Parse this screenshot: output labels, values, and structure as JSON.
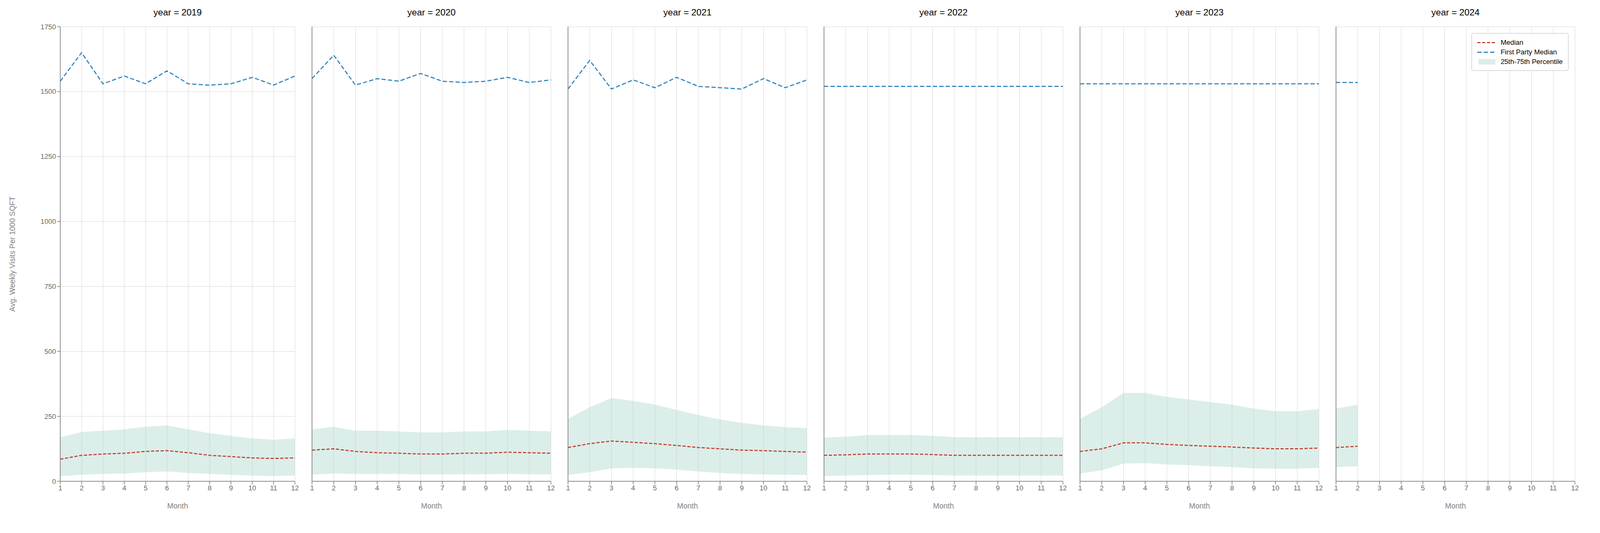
{
  "chart_data": [
    {
      "type": "line",
      "title": "year = 2019",
      "xlabel": "Month",
      "ylabel": "Avg. Weekly Visits Per 1000 SQFT",
      "x": [
        1,
        2,
        3,
        4,
        5,
        6,
        7,
        8,
        9,
        10,
        11,
        12
      ],
      "xlim": [
        1,
        12
      ],
      "xticks": [
        1,
        2,
        3,
        4,
        5,
        6,
        7,
        8,
        9,
        10,
        11,
        12
      ],
      "ylim": [
        0,
        1750
      ],
      "yticks": [
        0,
        250,
        500,
        750,
        1000,
        1250,
        1500,
        1750
      ],
      "grid": true,
      "series": [
        {
          "name": "Median",
          "type": "line",
          "color": "#c0392b",
          "line_style": "dashed",
          "values": [
            85,
            100,
            105,
            108,
            115,
            118,
            110,
            100,
            95,
            90,
            88,
            90
          ]
        },
        {
          "name": "First Party Median",
          "type": "line",
          "color": "#2980b9",
          "line_style": "dashed",
          "values": [
            1540,
            1650,
            1530,
            1560,
            1530,
            1580,
            1530,
            1525,
            1530,
            1555,
            1525,
            1560
          ]
        },
        {
          "name": "25th-75th Percentile",
          "type": "area",
          "color": "#a8d5c8",
          "lower": [
            20,
            25,
            28,
            30,
            35,
            38,
            32,
            28,
            25,
            22,
            20,
            22
          ],
          "upper": [
            170,
            190,
            195,
            200,
            210,
            215,
            200,
            185,
            175,
            165,
            160,
            165
          ]
        }
      ]
    },
    {
      "type": "line",
      "title": "year = 2020",
      "xlabel": "Month",
      "tick_labels": "x",
      "x": [
        1,
        2,
        3,
        4,
        5,
        6,
        7,
        8,
        9,
        10,
        11,
        12
      ],
      "xlim": [
        1,
        12
      ],
      "xticks": [
        1,
        2,
        3,
        4,
        5,
        6,
        7,
        8,
        9,
        10,
        11,
        12
      ],
      "ylim": [
        0,
        1750
      ],
      "yticks": [
        0,
        250,
        500,
        750,
        1000,
        1250,
        1500,
        1750
      ],
      "grid": true,
      "series": [
        {
          "name": "Median",
          "type": "line",
          "color": "#c0392b",
          "line_style": "dashed",
          "values": [
            120,
            125,
            115,
            110,
            108,
            105,
            105,
            108,
            108,
            112,
            110,
            108
          ]
        },
        {
          "name": "First Party Median",
          "type": "line",
          "color": "#2980b9",
          "line_style": "dashed",
          "values": [
            1550,
            1640,
            1525,
            1550,
            1540,
            1570,
            1540,
            1535,
            1540,
            1555,
            1535,
            1545
          ]
        },
        {
          "name": "25th-75th Percentile",
          "type": "area",
          "color": "#a8d5c8",
          "lower": [
            25,
            30,
            28,
            28,
            28,
            26,
            26,
            27,
            27,
            28,
            27,
            26
          ],
          "upper": [
            200,
            210,
            195,
            195,
            192,
            188,
            188,
            192,
            192,
            198,
            195,
            192
          ]
        }
      ]
    },
    {
      "type": "line",
      "title": "year = 2021",
      "xlabel": "Month",
      "tick_labels": "x",
      "x": [
        1,
        2,
        3,
        4,
        5,
        6,
        7,
        8,
        9,
        10,
        11,
        12
      ],
      "xlim": [
        1,
        12
      ],
      "xticks": [
        1,
        2,
        3,
        4,
        5,
        6,
        7,
        8,
        9,
        10,
        11,
        12
      ],
      "ylim": [
        0,
        1750
      ],
      "yticks": [
        0,
        250,
        500,
        750,
        1000,
        1250,
        1500,
        1750
      ],
      "grid": true,
      "series": [
        {
          "name": "Median",
          "type": "line",
          "color": "#c0392b",
          "line_style": "dashed",
          "values": [
            130,
            145,
            155,
            150,
            145,
            138,
            130,
            125,
            120,
            118,
            115,
            112
          ]
        },
        {
          "name": "First Party Median",
          "type": "line",
          "color": "#2980b9",
          "line_style": "dashed",
          "values": [
            1510,
            1620,
            1510,
            1545,
            1515,
            1555,
            1520,
            1515,
            1510,
            1550,
            1515,
            1545
          ]
        },
        {
          "name": "25th-75th Percentile",
          "type": "area",
          "color": "#a8d5c8",
          "lower": [
            25,
            35,
            50,
            52,
            50,
            45,
            38,
            32,
            28,
            26,
            25,
            24
          ],
          "upper": [
            240,
            285,
            320,
            310,
            295,
            275,
            255,
            238,
            225,
            215,
            208,
            205
          ]
        }
      ]
    },
    {
      "type": "line",
      "title": "year = 2022",
      "xlabel": "Month",
      "tick_labels": "x",
      "x": [
        1,
        2,
        3,
        4,
        5,
        6,
        7,
        8,
        9,
        10,
        11,
        12
      ],
      "xlim": [
        1,
        12
      ],
      "xticks": [
        1,
        2,
        3,
        4,
        5,
        6,
        7,
        8,
        9,
        10,
        11,
        12
      ],
      "ylim": [
        0,
        1750
      ],
      "yticks": [
        0,
        250,
        500,
        750,
        1000,
        1250,
        1500,
        1750
      ],
      "grid": true,
      "series": [
        {
          "name": "Median",
          "type": "line",
          "color": "#c0392b",
          "line_style": "dashed",
          "values": [
            100,
            102,
            105,
            105,
            105,
            103,
            100,
            100,
            100,
            100,
            100,
            100
          ]
        },
        {
          "name": "First Party Median",
          "type": "line",
          "color": "#2980b9",
          "line_style": "dashed",
          "values": [
            1520,
            1520,
            1520,
            1520,
            1520,
            1520,
            1520,
            1520,
            1520,
            1520,
            1520,
            1520
          ]
        },
        {
          "name": "25th-75th Percentile",
          "type": "area",
          "color": "#a8d5c8",
          "lower": [
            20,
            22,
            24,
            25,
            25,
            24,
            22,
            22,
            22,
            22,
            22,
            22
          ],
          "upper": [
            168,
            172,
            178,
            178,
            178,
            175,
            170,
            170,
            170,
            170,
            170,
            170
          ]
        }
      ]
    },
    {
      "type": "line",
      "title": "year = 2023",
      "xlabel": "Month",
      "tick_labels": "x",
      "x": [
        1,
        2,
        3,
        4,
        5,
        6,
        7,
        8,
        9,
        10,
        11,
        12
      ],
      "xlim": [
        1,
        12
      ],
      "xticks": [
        1,
        2,
        3,
        4,
        5,
        6,
        7,
        8,
        9,
        10,
        11,
        12
      ],
      "ylim": [
        0,
        1750
      ],
      "yticks": [
        0,
        250,
        500,
        750,
        1000,
        1250,
        1500,
        1750
      ],
      "grid": true,
      "series": [
        {
          "name": "Median",
          "type": "line",
          "color": "#c0392b",
          "line_style": "dashed",
          "values": [
            115,
            125,
            148,
            148,
            142,
            138,
            135,
            132,
            128,
            125,
            125,
            128
          ]
        },
        {
          "name": "First Party Median",
          "type": "line",
          "color": "#2980b9",
          "line_style": "dashed",
          "values": [
            1530,
            1530,
            1530,
            1530,
            1530,
            1530,
            1530,
            1530,
            1530,
            1530,
            1530,
            1530
          ]
        },
        {
          "name": "25th-75th Percentile",
          "type": "area",
          "color": "#a8d5c8",
          "lower": [
            30,
            42,
            68,
            70,
            65,
            62,
            58,
            55,
            50,
            48,
            48,
            52
          ],
          "upper": [
            240,
            285,
            340,
            340,
            325,
            315,
            305,
            295,
            280,
            270,
            270,
            278
          ]
        }
      ]
    },
    {
      "type": "line",
      "title": "year = 2024",
      "xlabel": "Month",
      "tick_labels": "x",
      "legend": "upper right",
      "x": [
        1,
        2,
        3,
        4,
        5,
        6,
        7,
        8,
        9,
        10,
        11,
        12
      ],
      "xlim": [
        1,
        12
      ],
      "xticks": [
        1,
        2,
        3,
        4,
        5,
        6,
        7,
        8,
        9,
        10,
        11,
        12
      ],
      "ylim": [
        0,
        1750
      ],
      "yticks": [
        0,
        250,
        500,
        750,
        1000,
        1250,
        1500,
        1750
      ],
      "grid": true,
      "series": [
        {
          "name": "Median",
          "type": "line",
          "color": "#c0392b",
          "line_style": "dashed",
          "values": [
            130,
            135,
            null,
            null,
            null,
            null,
            null,
            null,
            null,
            null,
            null,
            null
          ]
        },
        {
          "name": "First Party Median",
          "type": "line",
          "color": "#2980b9",
          "line_style": "dashed",
          "values": [
            1535,
            1535,
            null,
            null,
            null,
            null,
            null,
            null,
            null,
            null,
            null,
            null
          ]
        },
        {
          "name": "25th-75th Percentile",
          "type": "area",
          "color": "#a8d5c8",
          "lower": [
            55,
            58,
            null,
            null,
            null,
            null,
            null,
            null,
            null,
            null,
            null,
            null
          ],
          "upper": [
            280,
            295,
            null,
            null,
            null,
            null,
            null,
            null,
            null,
            null,
            null,
            null
          ]
        }
      ]
    }
  ]
}
